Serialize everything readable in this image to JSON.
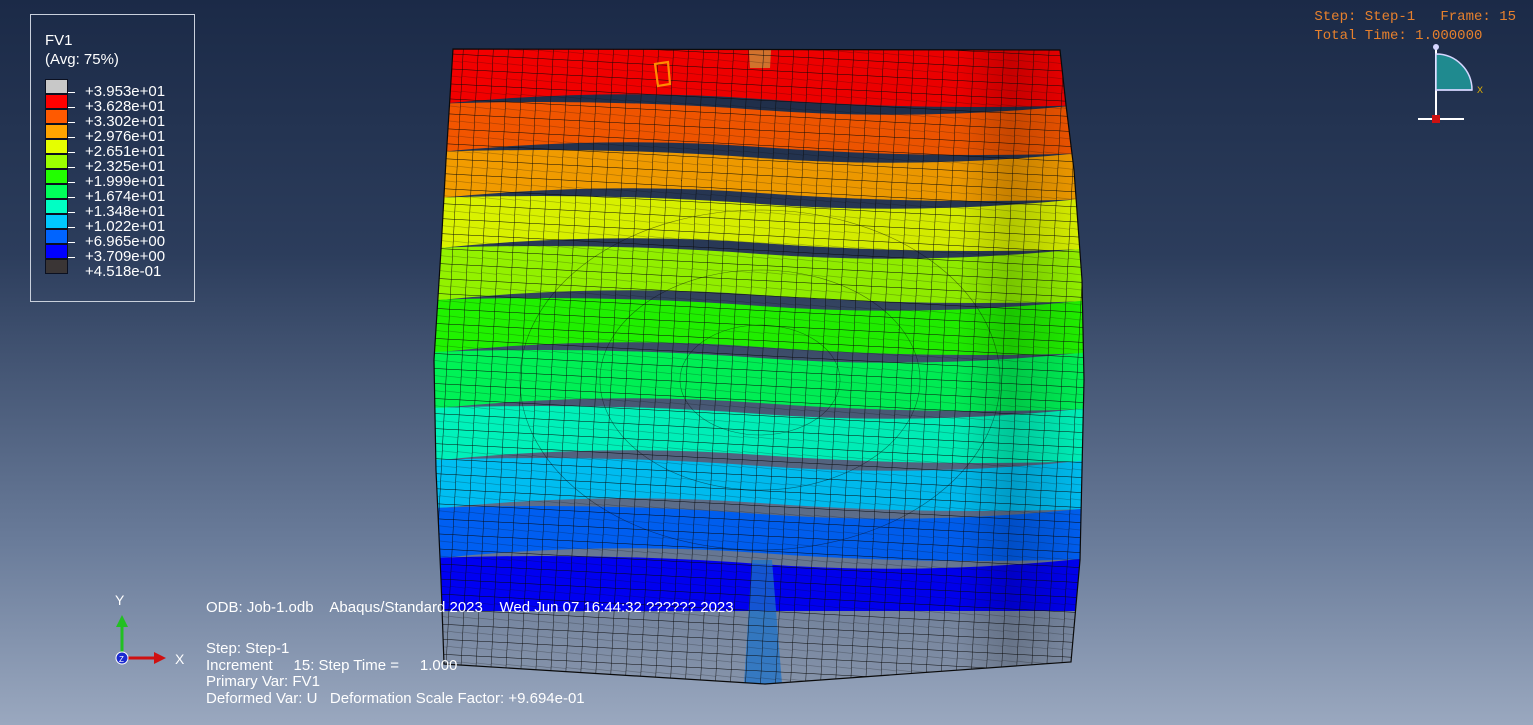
{
  "legend": {
    "variable": "FV1",
    "averaging": "(Avg: 75%)",
    "entries": [
      {
        "label": "+3.953e+01",
        "color": "#c8c8c8"
      },
      {
        "label": "+3.628e+01",
        "color": "#ff0000"
      },
      {
        "label": "+3.302e+01",
        "color": "#ff5a00"
      },
      {
        "label": "+2.976e+01",
        "color": "#ffa400"
      },
      {
        "label": "+2.651e+01",
        "color": "#e5ff00"
      },
      {
        "label": "+2.325e+01",
        "color": "#9bff00"
      },
      {
        "label": "+1.999e+01",
        "color": "#22ff00"
      },
      {
        "label": "+1.674e+01",
        "color": "#00ff5a"
      },
      {
        "label": "+1.348e+01",
        "color": "#00ffc4"
      },
      {
        "label": "+1.022e+01",
        "color": "#00c8ff"
      },
      {
        "label": "+6.965e+00",
        "color": "#0064ff"
      },
      {
        "label": "+3.709e+00",
        "color": "#0000ff"
      },
      {
        "label": "+4.518e-01",
        "color": "#3a3535"
      }
    ]
  },
  "step_info": {
    "line1": "Step: Step-1   Frame: 15",
    "line2": "Total Time: 1.000000"
  },
  "triad_labels": {
    "x": "X",
    "y": "Y"
  },
  "footer": {
    "odb": "ODB: Job-1.odb    Abaqus/Standard 2023    Wed Jun 07 16:44:32 ?????? 2023",
    "step": "Step: Step-1",
    "increment": "Increment     15: Step Time =     1.000",
    "primary_var": "Primary Var: FV1",
    "deformed_var": "Deformed Var: U   Deformation Scale Factor: +9.694e-01"
  },
  "contour_bands": [
    "#ff0000",
    "#ff5a00",
    "#ffa400",
    "#e5ff00",
    "#9bff00",
    "#22ff00",
    "#00ff5a",
    "#00ffc4",
    "#00c8ff",
    "#0064ff",
    "#0000ff"
  ]
}
